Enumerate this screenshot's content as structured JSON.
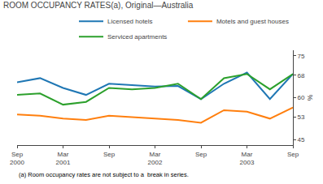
{
  "chart_data": {
    "type": "line",
    "title": "ROOM OCCUPANCY RATES(a), Original—Australia",
    "footnote": "(a) Room occupancy rates are not subject to a  break in series.",
    "ylabel": "%",
    "categories": [
      "Sep\n2000",
      null,
      "Mar\n2001",
      null,
      "Sep",
      null,
      "Mar\n2002",
      null,
      "Sep",
      null,
      "Mar\n2003",
      null,
      "Sep"
    ],
    "series": [
      {
        "name": "Licensed hotels",
        "values": [
          65.5,
          67.0,
          63.5,
          61.0,
          65.0,
          64.5,
          64.0,
          64.2,
          59.5,
          65.0,
          69.0,
          59.5,
          68.5
        ]
      },
      {
        "name": "Motels and guest houses",
        "values": [
          54.0,
          53.5,
          52.5,
          52.0,
          53.5,
          53.0,
          52.5,
          52.0,
          51.0,
          55.5,
          55.0,
          52.5,
          56.5
        ]
      },
      {
        "name": "Serviced apartments",
        "values": [
          61.0,
          61.5,
          57.5,
          58.5,
          63.5,
          63.0,
          63.5,
          65.0,
          59.5,
          67.0,
          68.5,
          63.0,
          68.5
        ]
      }
    ],
    "ylim": [
      43,
      77
    ],
    "yticks": [
      45,
      53,
      60,
      68,
      75
    ],
    "grid": false,
    "legend": "top"
  }
}
